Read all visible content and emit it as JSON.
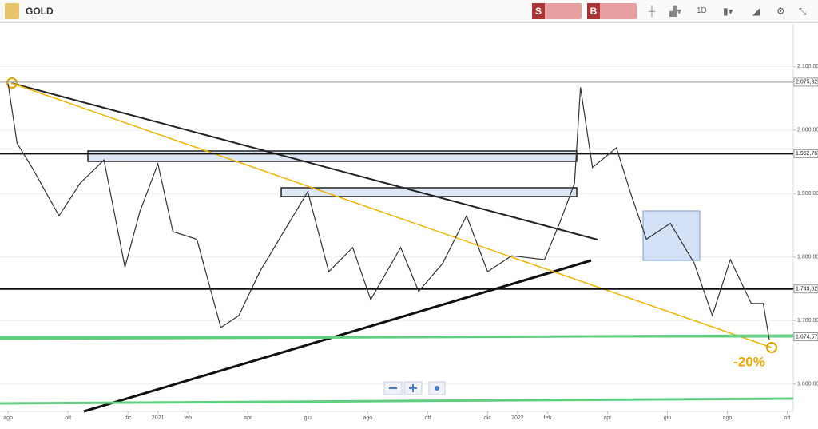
{
  "toolbar": {
    "symbol": "GOLD",
    "sell": "S",
    "buy": "B",
    "timeframe": "1D"
  },
  "chart_data": {
    "type": "line",
    "color": "#333333",
    "x": [
      0,
      0.3,
      0.8,
      1.7,
      2.4,
      3.2,
      3.9,
      4.4,
      5.0,
      5.5,
      6.3,
      7.1,
      7.7,
      8.4,
      9.2,
      10.0,
      10.7,
      11.5,
      12.1,
      13.1,
      13.7,
      14.5,
      15.3,
      16.0,
      16.8,
      17.9,
      18.4,
      18.9,
      19.1,
      19.5,
      20.3,
      20.8,
      21.3,
      22.1,
      22.9,
      23.5,
      24.1,
      24.8,
      25.2,
      25.4
    ],
    "values": [
      2073,
      1979,
      1941,
      1865,
      1916,
      1953,
      1784,
      1872,
      1947,
      1840,
      1828,
      1689,
      1708,
      1777,
      1840,
      1903,
      1777,
      1815,
      1733,
      1815,
      1746,
      1790,
      1865,
      1777,
      1802,
      1796,
      1853,
      1916,
      2067,
      1941,
      1972,
      1897,
      1828,
      1853,
      1790,
      1708,
      1796,
      1727,
      1727,
      1670
    ],
    "xlim": [
      -0.27,
      26.2
    ],
    "xticks": [
      {
        "value": 0,
        "label": "ago"
      },
      {
        "value": 2,
        "label": "ott"
      },
      {
        "value": 4,
        "label": "dic"
      },
      {
        "value": 5,
        "label": "2021"
      },
      {
        "value": 6,
        "label": "feb"
      },
      {
        "value": 8,
        "label": "apr"
      },
      {
        "value": 10,
        "label": "giu"
      },
      {
        "value": 12,
        "label": "ago"
      },
      {
        "value": 14,
        "label": "ott"
      },
      {
        "value": 16,
        "label": "dic"
      },
      {
        "value": 17,
        "label": "2022"
      },
      {
        "value": 18,
        "label": "feb"
      },
      {
        "value": 20,
        "label": "apr"
      },
      {
        "value": 22,
        "label": "giu"
      },
      {
        "value": 24,
        "label": "ago"
      },
      {
        "value": 26,
        "label": "ott"
      }
    ],
    "ylim": [
      1557,
      2167
    ],
    "yticks": [
      {
        "value": 1600,
        "label": "1.600,00"
      },
      {
        "value": 1700,
        "label": "1.700,00"
      },
      {
        "value": 1800,
        "label": "1.800,00"
      },
      {
        "value": 1900,
        "label": "1.900,00"
      },
      {
        "value": 2000,
        "label": "2.000,00"
      },
      {
        "value": 2100,
        "label": "2.100,00"
      }
    ],
    "price_levels": [
      {
        "value": 2075.32,
        "label": "2.075,32"
      },
      {
        "value": 1962.76,
        "label": "1.962,76"
      },
      {
        "value": 1749.82,
        "label": "1.749,82"
      },
      {
        "value": 1674.57,
        "label": "1.674,57"
      }
    ],
    "annotation": "-20%"
  }
}
